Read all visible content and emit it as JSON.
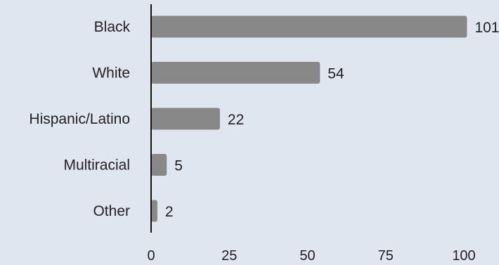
{
  "chart_data": {
    "type": "bar",
    "orientation": "horizontal",
    "title": "",
    "xlabel": "",
    "ylabel": "",
    "categories": [
      "Black",
      "White",
      "Hispanic/Latino",
      "Multiracial",
      "Other"
    ],
    "values": [
      101,
      54,
      22,
      5,
      2
    ],
    "data_labels": [
      "101",
      "54",
      "22",
      "5",
      "2"
    ],
    "x_ticks": [
      "0",
      "25",
      "50",
      "75",
      "100"
    ],
    "xlim": [
      0,
      101
    ],
    "grid": false,
    "legend": "none",
    "colors": {
      "background": "#e0e6f0",
      "bar": "#888888",
      "axis": "#111111",
      "text": "#222222"
    }
  }
}
